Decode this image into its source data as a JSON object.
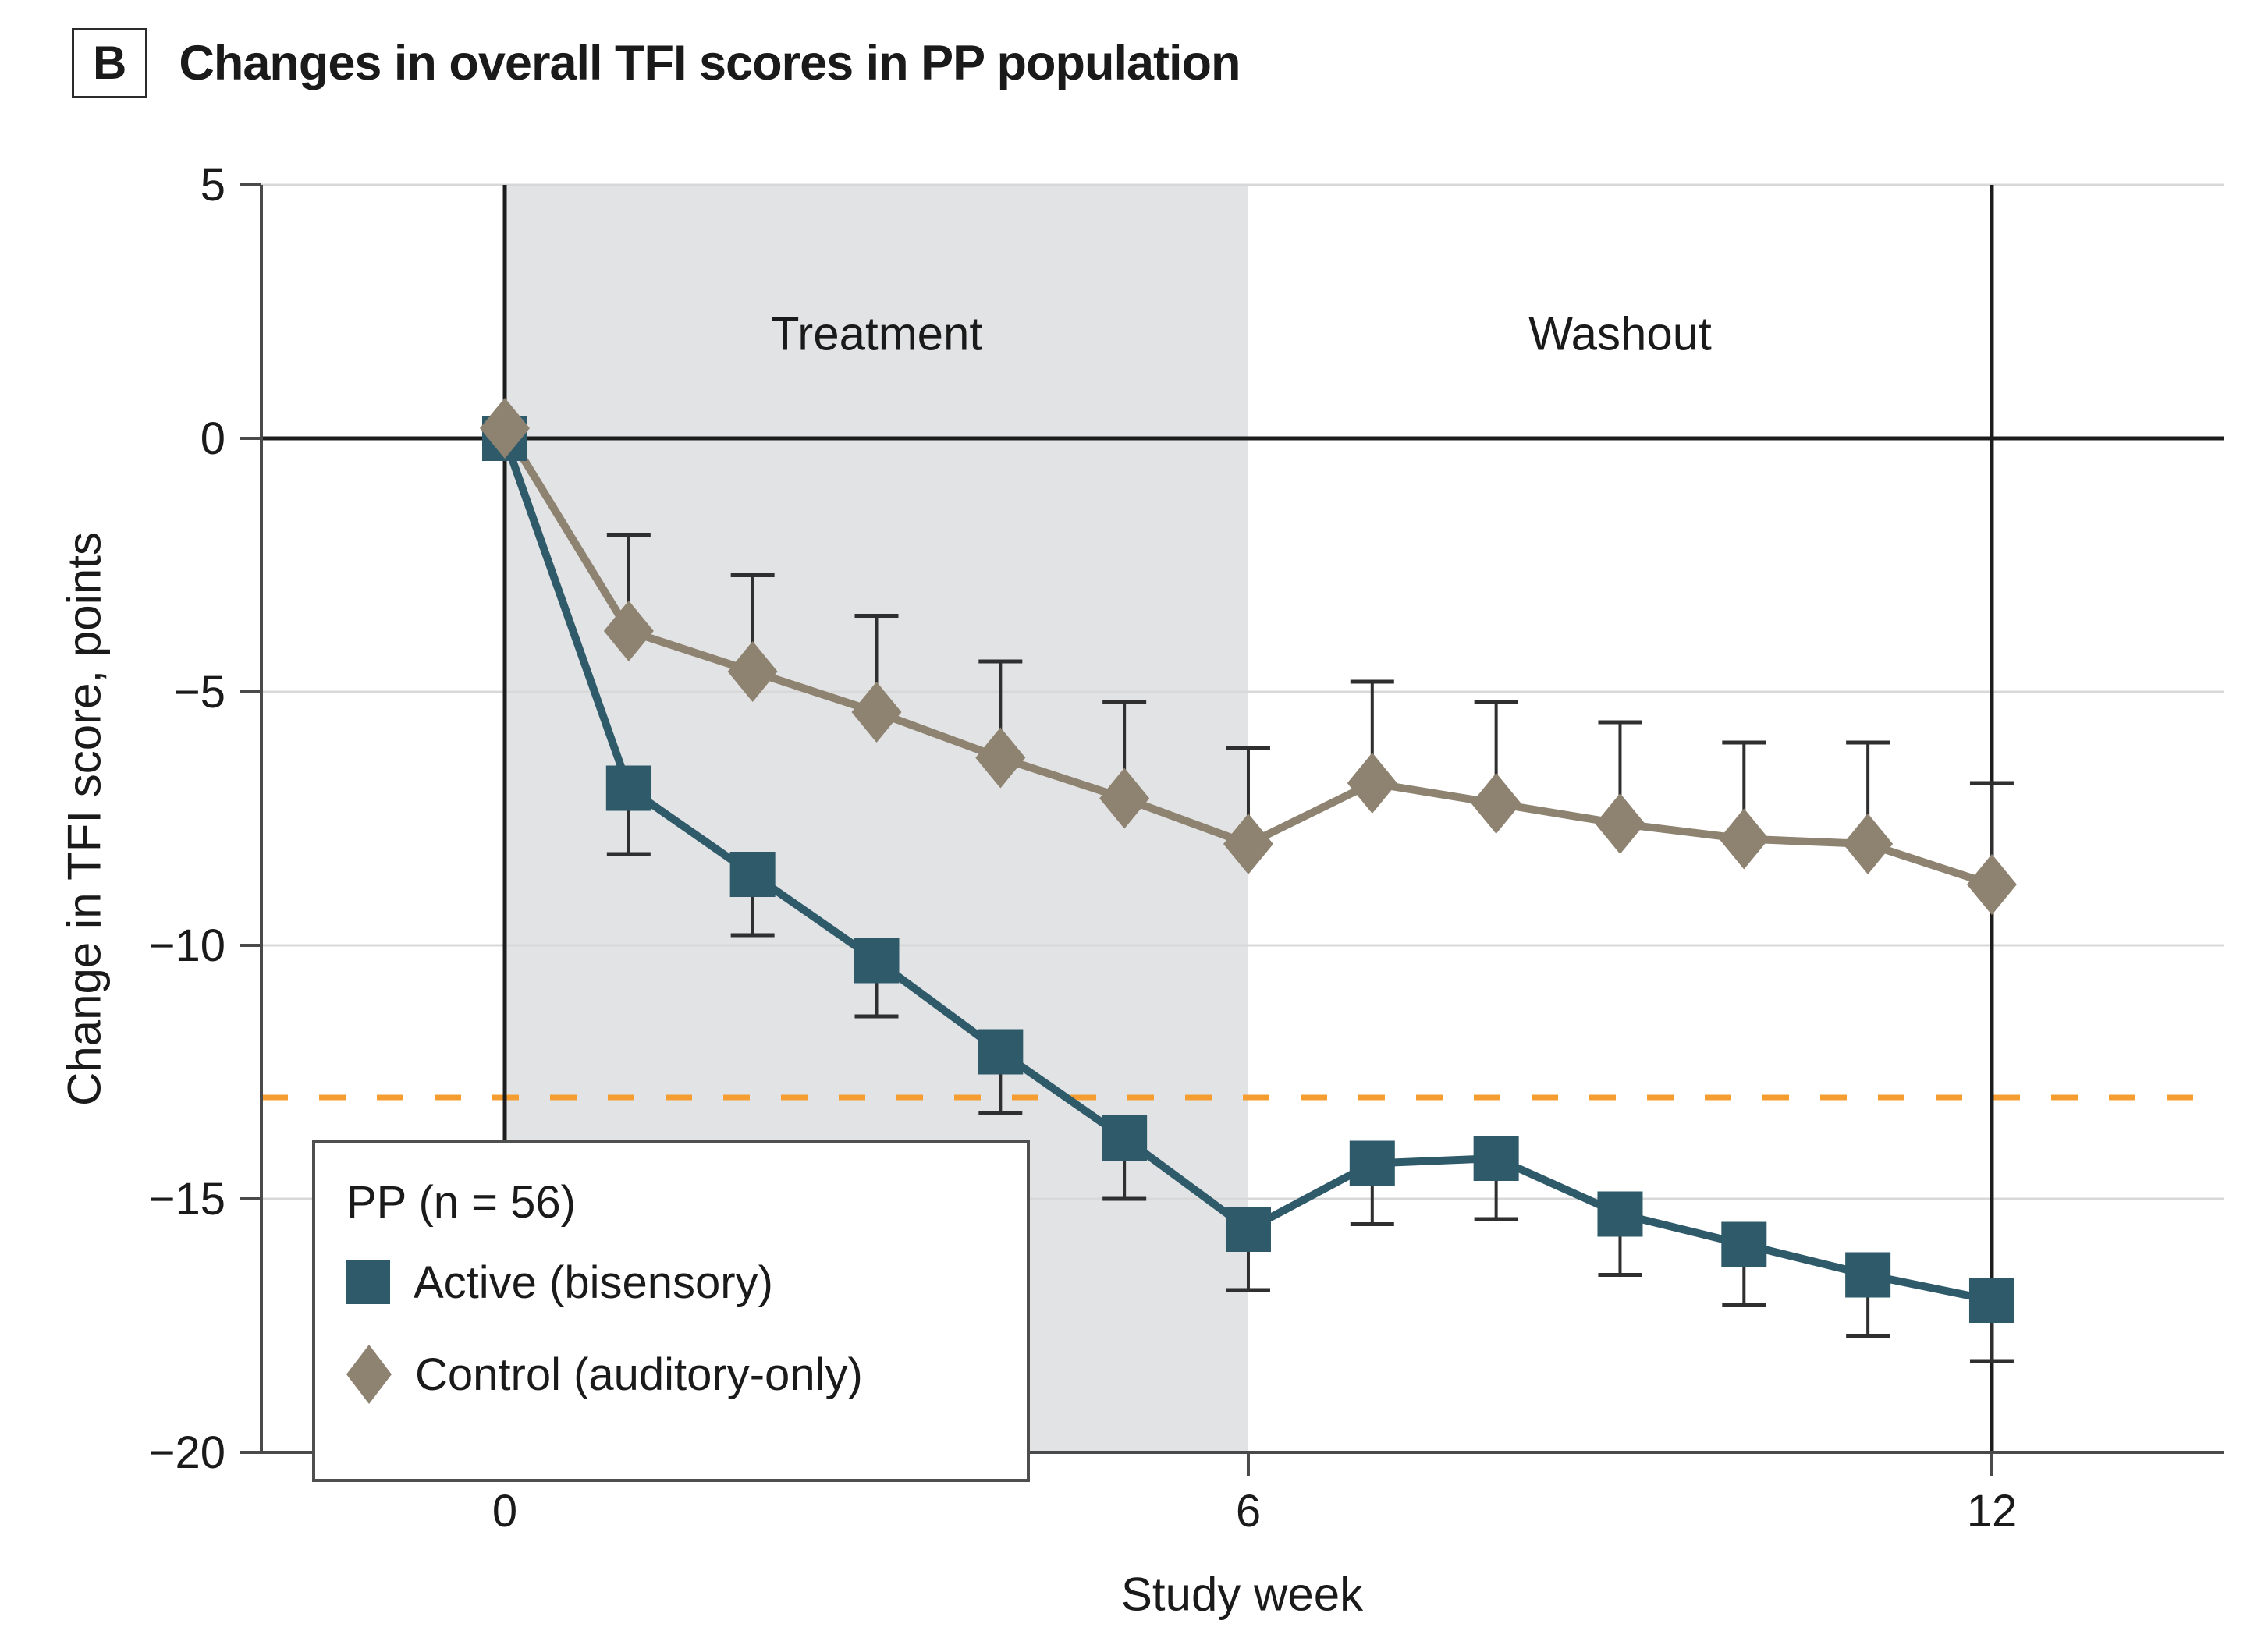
{
  "panel": {
    "label": "B",
    "title": "Changes in overall TFI scores in PP population"
  },
  "axes": {
    "y": {
      "title": "Change in TFI score, points",
      "ticks": [
        5,
        0,
        -5,
        -10,
        -15,
        -20
      ],
      "gridline_values": [
        5,
        -5,
        -10,
        -15
      ],
      "range": [
        -20,
        5
      ]
    },
    "x": {
      "title": "Study week",
      "ticks": [
        0,
        6,
        12
      ],
      "range": [
        0,
        12
      ]
    }
  },
  "regions": [
    {
      "label": "Treatment",
      "from_week": 0,
      "to_week": 6,
      "shaded": true
    },
    {
      "label": "Washout",
      "from_week": 6,
      "to_week": 12,
      "shaded": false
    }
  ],
  "vertical_lines_weeks": [
    0,
    12
  ],
  "reference_line": {
    "value": -13,
    "style": "dashed",
    "color": "#f59d31"
  },
  "legend": {
    "heading": "PP (n = 56)",
    "items": [
      {
        "label": "Active (bisensory)",
        "marker": "square",
        "color": "#2e5a6a"
      },
      {
        "label": "Control (auditory-only)",
        "marker": "diamond",
        "color": "#8e8270"
      }
    ]
  },
  "colors": {
    "shading": "#e2e3e4",
    "gridline": "#d8d8d8",
    "axis": "#4a4a4a",
    "strong_line": "#1c1c1c",
    "error": "#2f2f2f",
    "teal": "#2e5a6a",
    "tan": "#8e8270",
    "orange": "#f59d31"
  },
  "chart_data": {
    "type": "line",
    "title": "Changes in overall TFI scores in PP population",
    "xlabel": "Study week",
    "ylabel": "Change in TFI score, points",
    "xlim": [
      0,
      12
    ],
    "ylim": [
      -20,
      5
    ],
    "x": [
      0,
      1,
      2,
      3,
      4,
      5,
      6,
      7,
      8,
      9,
      10,
      11,
      12
    ],
    "series": [
      {
        "name": "Active (bisensory)",
        "marker": "square",
        "color": "#2e5a6a",
        "values": [
          0,
          -6.9,
          -8.6,
          -10.3,
          -12.1,
          -13.8,
          -15.6,
          -14.3,
          -14.2,
          -15.3,
          -15.9,
          -16.5,
          -17.0
        ],
        "error_dir": "down",
        "errors": [
          0,
          1.3,
          1.2,
          1.1,
          1.2,
          1.2,
          1.2,
          1.2,
          1.2,
          1.2,
          1.2,
          1.2,
          1.2
        ]
      },
      {
        "name": "Control (auditory-only)",
        "marker": "diamond",
        "color": "#8e8270",
        "values": [
          0.2,
          -3.8,
          -4.6,
          -5.4,
          -6.3,
          -7.1,
          -8.0,
          -6.8,
          -7.2,
          -7.6,
          -7.9,
          -8.0,
          -8.8
        ],
        "error_dir": "up",
        "errors": [
          0,
          1.9,
          1.9,
          1.9,
          1.9,
          1.9,
          1.9,
          2.0,
          2.0,
          2.0,
          1.9,
          2.0,
          2.0
        ]
      }
    ],
    "annotations": {
      "reference_line_y": -13,
      "treatment_window": [
        0,
        6
      ],
      "washout_window": [
        6,
        12
      ]
    },
    "legend_position": "lower-left",
    "grid": "horizontal-only"
  }
}
